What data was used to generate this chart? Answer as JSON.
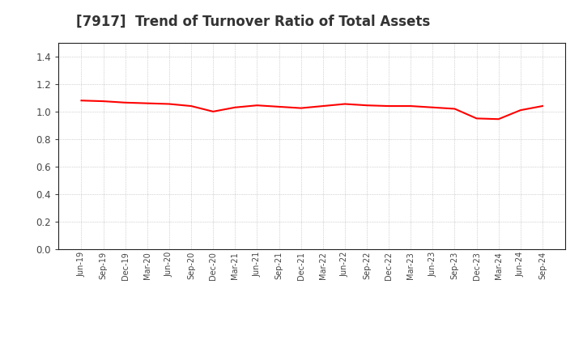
{
  "title": "[7917]  Trend of Turnover Ratio of Total Assets",
  "title_fontsize": 12,
  "title_color": "#333333",
  "line_color": "#ff0000",
  "line_width": 1.5,
  "background_color": "#ffffff",
  "plot_bg_color": "#ffffff",
  "grid_color": "#999999",
  "ylim": [
    0.0,
    1.5
  ],
  "yticks": [
    0.0,
    0.2,
    0.4,
    0.6,
    0.8,
    1.0,
    1.2,
    1.4
  ],
  "x_labels": [
    "Jun-19",
    "Sep-19",
    "Dec-19",
    "Mar-20",
    "Jun-20",
    "Sep-20",
    "Dec-20",
    "Mar-21",
    "Jun-21",
    "Sep-21",
    "Dec-21",
    "Mar-22",
    "Jun-22",
    "Sep-22",
    "Dec-22",
    "Mar-23",
    "Jun-23",
    "Sep-23",
    "Dec-23",
    "Mar-24",
    "Jun-24",
    "Sep-24"
  ],
  "values": [
    1.08,
    1.075,
    1.065,
    1.06,
    1.055,
    1.04,
    1.0,
    1.03,
    1.045,
    1.035,
    1.025,
    1.04,
    1.055,
    1.045,
    1.04,
    1.04,
    1.03,
    1.02,
    0.95,
    0.945,
    1.01,
    1.04
  ]
}
